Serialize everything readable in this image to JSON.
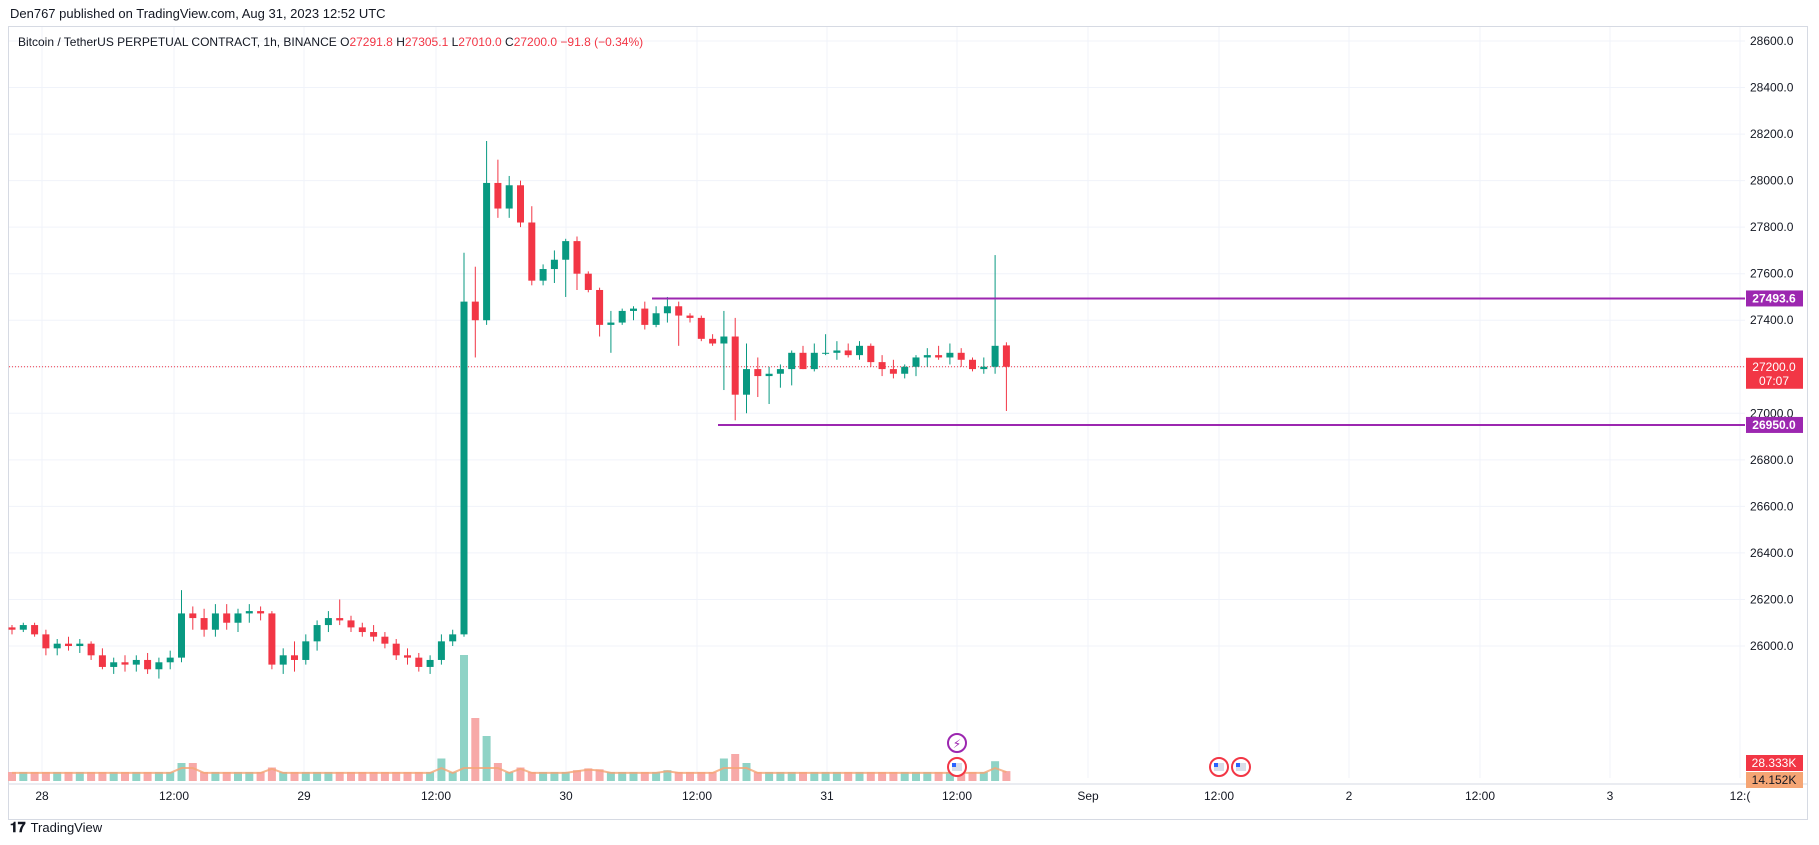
{
  "header": {
    "published_by": "Den767 published on TradingView.com, Aug 31, 2023 12:52 UTC"
  },
  "symbol": {
    "name": "Bitcoin / TetherUS PERPETUAL CONTRACT, 1h, BINANCE",
    "o_label": "O",
    "o_value": "27291.8",
    "h_label": "H",
    "h_value": "27305.1",
    "l_label": "L",
    "l_value": "27010.0",
    "c_label": "C",
    "c_value": "27200.0",
    "change": "−91.8 (−0.34%)"
  },
  "footer": {
    "brand": "TradingView",
    "logo_icon": "tradingview-logo-icon"
  },
  "colors": {
    "up": "#089981",
    "down": "#f23645",
    "up_volume": "#8fd3c6",
    "down_volume": "#f7a9a8",
    "level": "#9c27b0",
    "grid": "#f0f3fa"
  },
  "chart_data": {
    "type": "candlestick",
    "y_axis": {
      "range": [
        25880,
        28750
      ],
      "ticks": [
        26000,
        26200,
        26400,
        26600,
        26800,
        27000,
        27200,
        27400,
        27600,
        27800,
        28000,
        28200,
        28400,
        28600
      ],
      "tick_labels": [
        "26000.0",
        "26200.0",
        "26400.0",
        "26600.0",
        "26800.0",
        "27000.0",
        "27200.0",
        "27400.0",
        "27600.0",
        "27800.0",
        "28000.0",
        "28200.0",
        "28400.0",
        "28600.0"
      ]
    },
    "x_axis": {
      "labels": [
        "28",
        "12:00",
        "29",
        "12:00",
        "30",
        "12:00",
        "31",
        "12:00",
        "Sep",
        "12:00",
        "2",
        "12:00",
        "3",
        "12:("
      ]
    },
    "levels": [
      {
        "label": "27493.6",
        "value": 27493.6
      },
      {
        "label": "26950.0",
        "value": 26950.0
      }
    ],
    "last_price": {
      "label": "27200.0",
      "value": 27200.0,
      "countdown": "07:07"
    },
    "volume_labels": [
      "28.333K",
      "14.152K"
    ],
    "candles": [
      [
        26080,
        26090,
        26050,
        26070
      ],
      [
        26070,
        26100,
        26060,
        26090
      ],
      [
        26090,
        26100,
        26040,
        26050
      ],
      [
        26050,
        26070,
        25960,
        25990
      ],
      [
        25990,
        26030,
        25960,
        26010
      ],
      [
        26010,
        26040,
        25980,
        26000
      ],
      [
        26000,
        26030,
        25970,
        26010
      ],
      [
        26010,
        26020,
        25940,
        25960
      ],
      [
        25960,
        25990,
        25900,
        25910
      ],
      [
        25910,
        25950,
        25880,
        25930
      ],
      [
        25930,
        25960,
        25890,
        25920
      ],
      [
        25920,
        25960,
        25890,
        25940
      ],
      [
        25940,
        25970,
        25880,
        25900
      ],
      [
        25900,
        25950,
        25860,
        25930
      ],
      [
        25930,
        25980,
        25900,
        25950
      ],
      [
        25950,
        26240,
        25930,
        26140
      ],
      [
        26140,
        26170,
        26070,
        26120
      ],
      [
        26120,
        26160,
        26040,
        26070
      ],
      [
        26070,
        26180,
        26040,
        26140
      ],
      [
        26140,
        26180,
        26070,
        26100
      ],
      [
        26100,
        26160,
        26060,
        26140
      ],
      [
        26140,
        26180,
        26100,
        26150
      ],
      [
        26150,
        26170,
        26110,
        26140
      ],
      [
        26140,
        26150,
        25900,
        25920
      ],
      [
        25920,
        25990,
        25880,
        25960
      ],
      [
        25960,
        26020,
        25890,
        25940
      ],
      [
        25940,
        26050,
        25920,
        26020
      ],
      [
        26020,
        26110,
        25980,
        26090
      ],
      [
        26090,
        26150,
        26060,
        26120
      ],
      [
        26120,
        26200,
        26090,
        26110
      ],
      [
        26110,
        26130,
        26060,
        26080
      ],
      [
        26080,
        26100,
        26040,
        26060
      ],
      [
        26060,
        26090,
        26020,
        26040
      ],
      [
        26040,
        26060,
        25990,
        26010
      ],
      [
        26010,
        26030,
        25940,
        25960
      ],
      [
        25960,
        25990,
        25920,
        25950
      ],
      [
        25950,
        25970,
        25890,
        25910
      ],
      [
        25910,
        25960,
        25880,
        25940
      ],
      [
        25940,
        26050,
        25920,
        26020
      ],
      [
        26020,
        26070,
        26000,
        26050
      ],
      [
        26050,
        27690,
        26040,
        27480
      ],
      [
        27480,
        27630,
        27240,
        27400
      ],
      [
        27400,
        28170,
        27380,
        27990
      ],
      [
        27990,
        28090,
        27840,
        27880
      ],
      [
        27880,
        28020,
        27840,
        27980
      ],
      [
        27980,
        28000,
        27800,
        27820
      ],
      [
        27820,
        27890,
        27550,
        27570
      ],
      [
        27570,
        27640,
        27550,
        27620
      ],
      [
        27620,
        27700,
        27560,
        27660
      ],
      [
        27660,
        27750,
        27500,
        27740
      ],
      [
        27740,
        27760,
        27530,
        27600
      ],
      [
        27600,
        27610,
        27520,
        27530
      ],
      [
        27530,
        27540,
        27330,
        27380
      ],
      [
        27380,
        27440,
        27260,
        27390
      ],
      [
        27390,
        27450,
        27380,
        27440
      ],
      [
        27440,
        27460,
        27400,
        27450
      ],
      [
        27450,
        27480,
        27360,
        27380
      ],
      [
        27380,
        27460,
        27370,
        27430
      ],
      [
        27430,
        27500,
        27390,
        27460
      ],
      [
        27460,
        27480,
        27290,
        27420
      ],
      [
        27420,
        27430,
        27390,
        27410
      ],
      [
        27410,
        27420,
        27310,
        27320
      ],
      [
        27320,
        27340,
        27290,
        27300
      ],
      [
        27300,
        27440,
        27100,
        27330
      ],
      [
        27330,
        27410,
        26970,
        27080
      ],
      [
        27080,
        27300,
        27000,
        27190
      ],
      [
        27190,
        27240,
        27070,
        27160
      ],
      [
        27160,
        27200,
        27040,
        27170
      ],
      [
        27170,
        27210,
        27110,
        27190
      ],
      [
        27190,
        27270,
        27120,
        27260
      ],
      [
        27260,
        27290,
        27190,
        27190
      ],
      [
        27190,
        27300,
        27180,
        27260
      ],
      [
        27260,
        27340,
        27250,
        27260
      ],
      [
        27260,
        27310,
        27230,
        27270
      ],
      [
        27270,
        27300,
        27240,
        27250
      ],
      [
        27250,
        27310,
        27230,
        27290
      ],
      [
        27290,
        27300,
        27200,
        27220
      ],
      [
        27220,
        27250,
        27160,
        27190
      ],
      [
        27190,
        27230,
        27150,
        27170
      ],
      [
        27170,
        27210,
        27150,
        27200
      ],
      [
        27200,
        27250,
        27160,
        27240
      ],
      [
        27240,
        27280,
        27200,
        27250
      ],
      [
        27250,
        27290,
        27230,
        27240
      ],
      [
        27240,
        27300,
        27210,
        27260
      ],
      [
        27260,
        27280,
        27200,
        27230
      ],
      [
        27230,
        27240,
        27180,
        27190
      ],
      [
        27190,
        27240,
        27170,
        27200
      ],
      [
        27200,
        27680,
        27170,
        27290
      ],
      [
        27291.8,
        27305.1,
        27010,
        27200
      ]
    ],
    "volumes": [
      1,
      1,
      1,
      1,
      1,
      1,
      1,
      1,
      1,
      1,
      1,
      1,
      1,
      1,
      1,
      2,
      2,
      1,
      1,
      1,
      1,
      1,
      1,
      1.5,
      1,
      1,
      1,
      1,
      1,
      1,
      1,
      1,
      1,
      1,
      1,
      1,
      1,
      1,
      2.5,
      1,
      14,
      7,
      5,
      2,
      1,
      1.5,
      1,
      1,
      1,
      1,
      1.2,
      1.4,
      1.3,
      1,
      1,
      1,
      1,
      1,
      1.2,
      1,
      1,
      1,
      1,
      2.5,
      3,
      2,
      1,
      1,
      1,
      1,
      1,
      1,
      1,
      1,
      1,
      1,
      1,
      1,
      1,
      1,
      1,
      1,
      1,
      1,
      1,
      1,
      1,
      2.2,
      1.1
    ]
  }
}
